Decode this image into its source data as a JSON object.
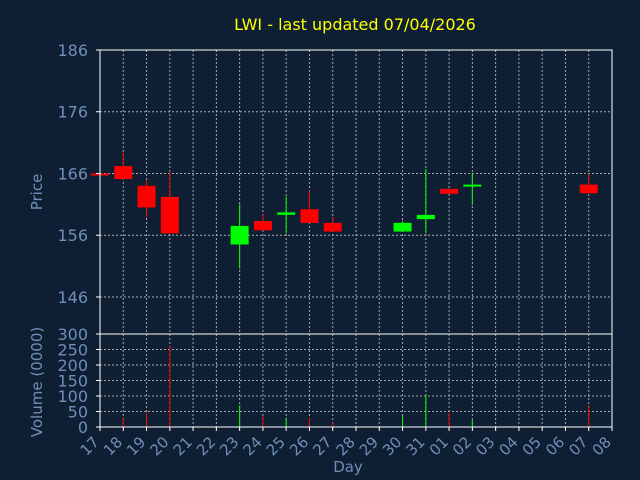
{
  "chart_data": {
    "type": "candlestick",
    "title": "LWI - last updated 07/04/2026",
    "xlabel": "Day",
    "colors": {
      "background": "#0f1f33",
      "title": "#ffff00",
      "axis_text": "#6f8fb8",
      "axis_line": "#ffffff",
      "grid": "#aaaaaa",
      "up": "#00ff00",
      "down": "#ff0000"
    },
    "x_tick_labels": [
      "17",
      "18",
      "19",
      "20",
      "21",
      "22",
      "23",
      "24",
      "25",
      "26",
      "27",
      "28",
      "29",
      "30",
      "31",
      "01",
      "02",
      "03",
      "04",
      "05",
      "06",
      "07",
      "08"
    ],
    "price_panel": {
      "ylabel": "Price",
      "ylim": [
        140,
        186
      ],
      "ticks": [
        186,
        176,
        166,
        156,
        146
      ],
      "grid": true
    },
    "volume_panel": {
      "ylabel": "Volume (0000)",
      "ylim": [
        0,
        300
      ],
      "ticks": [
        300,
        250,
        200,
        150,
        100,
        50,
        0
      ],
      "grid": true
    },
    "candles": [
      {
        "day": "17",
        "open": 166.0,
        "high": 166.0,
        "low": 165.6,
        "close": 165.7,
        "volume": 0
      },
      {
        "day": "18",
        "open": 167.2,
        "high": 169.4,
        "low": 165.0,
        "close": 165.1,
        "volume": 30
      },
      {
        "day": "19",
        "open": 164.0,
        "high": 165.0,
        "low": 158.9,
        "close": 160.5,
        "volume": 45
      },
      {
        "day": "20",
        "open": 162.2,
        "high": 166.3,
        "low": 156.3,
        "close": 156.3,
        "volume": 260
      },
      {
        "day": "23",
        "open": 154.5,
        "high": 161.0,
        "low": 150.6,
        "close": 157.5,
        "volume": 70
      },
      {
        "day": "24",
        "open": 158.3,
        "high": 159.3,
        "low": 156.8,
        "close": 156.8,
        "volume": 35
      },
      {
        "day": "25",
        "open": 159.3,
        "high": 162.3,
        "low": 156.3,
        "close": 159.7,
        "volume": 30
      },
      {
        "day": "26",
        "open": 160.2,
        "high": 163.2,
        "low": 158.0,
        "close": 158.0,
        "volume": 30
      },
      {
        "day": "27",
        "open": 158.0,
        "high": 159.0,
        "low": 156.6,
        "close": 156.6,
        "volume": 15
      },
      {
        "day": "30",
        "open": 156.6,
        "high": 158.3,
        "low": 156.6,
        "close": 158.0,
        "volume": 35
      },
      {
        "day": "31",
        "open": 158.6,
        "high": 166.7,
        "low": 156.3,
        "close": 159.3,
        "volume": 105
      },
      {
        "day": "01",
        "open": 163.5,
        "high": 163.5,
        "low": 162.7,
        "close": 162.7,
        "volume": 45
      },
      {
        "day": "02",
        "open": 164.0,
        "high": 166.0,
        "low": 160.9,
        "close": 164.2,
        "volume": 25
      },
      {
        "day": "07",
        "open": 164.2,
        "high": 166.0,
        "low": 162.8,
        "close": 162.8,
        "volume": 70
      }
    ]
  }
}
